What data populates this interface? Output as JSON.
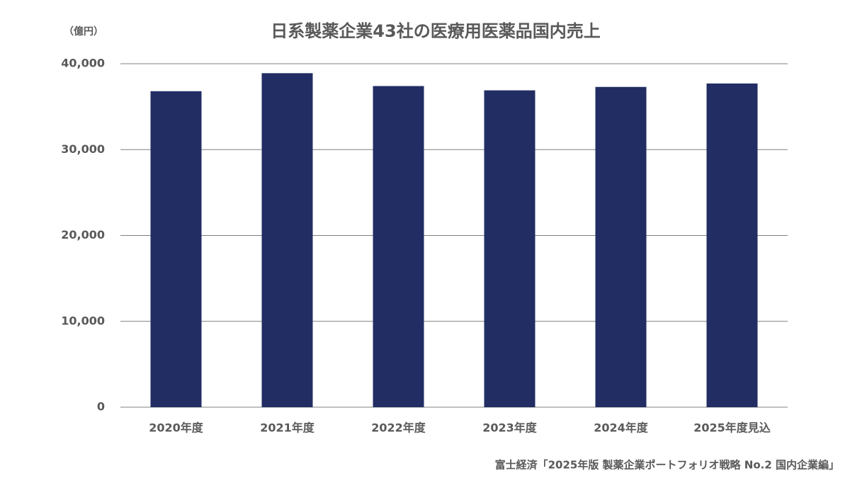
{
  "chart_data": {
    "type": "bar",
    "title": "日系製薬企業43社の医療用医薬品国内売上",
    "y_unit": "（億円）",
    "source": "富士経済「2025年版 製薬企業ポートフォリオ戦略 No.2 国内企業編」",
    "categories": [
      "2020年度",
      "2021年度",
      "2022年度",
      "2023年度",
      "2024年度",
      "2025年度見込"
    ],
    "values": [
      36800,
      38900,
      37400,
      36900,
      37300,
      37700
    ],
    "color": "#222d64",
    "ylim": [
      0,
      40000
    ],
    "yticks": [
      0,
      {
        "value": 10000,
        "label": "10,000"
      },
      {
        "value": 20000,
        "label": "20,000"
      },
      {
        "value": 30000,
        "label": "30,000"
      },
      {
        "value": 40000,
        "label": "40,000"
      }
    ],
    "grid": true
  }
}
